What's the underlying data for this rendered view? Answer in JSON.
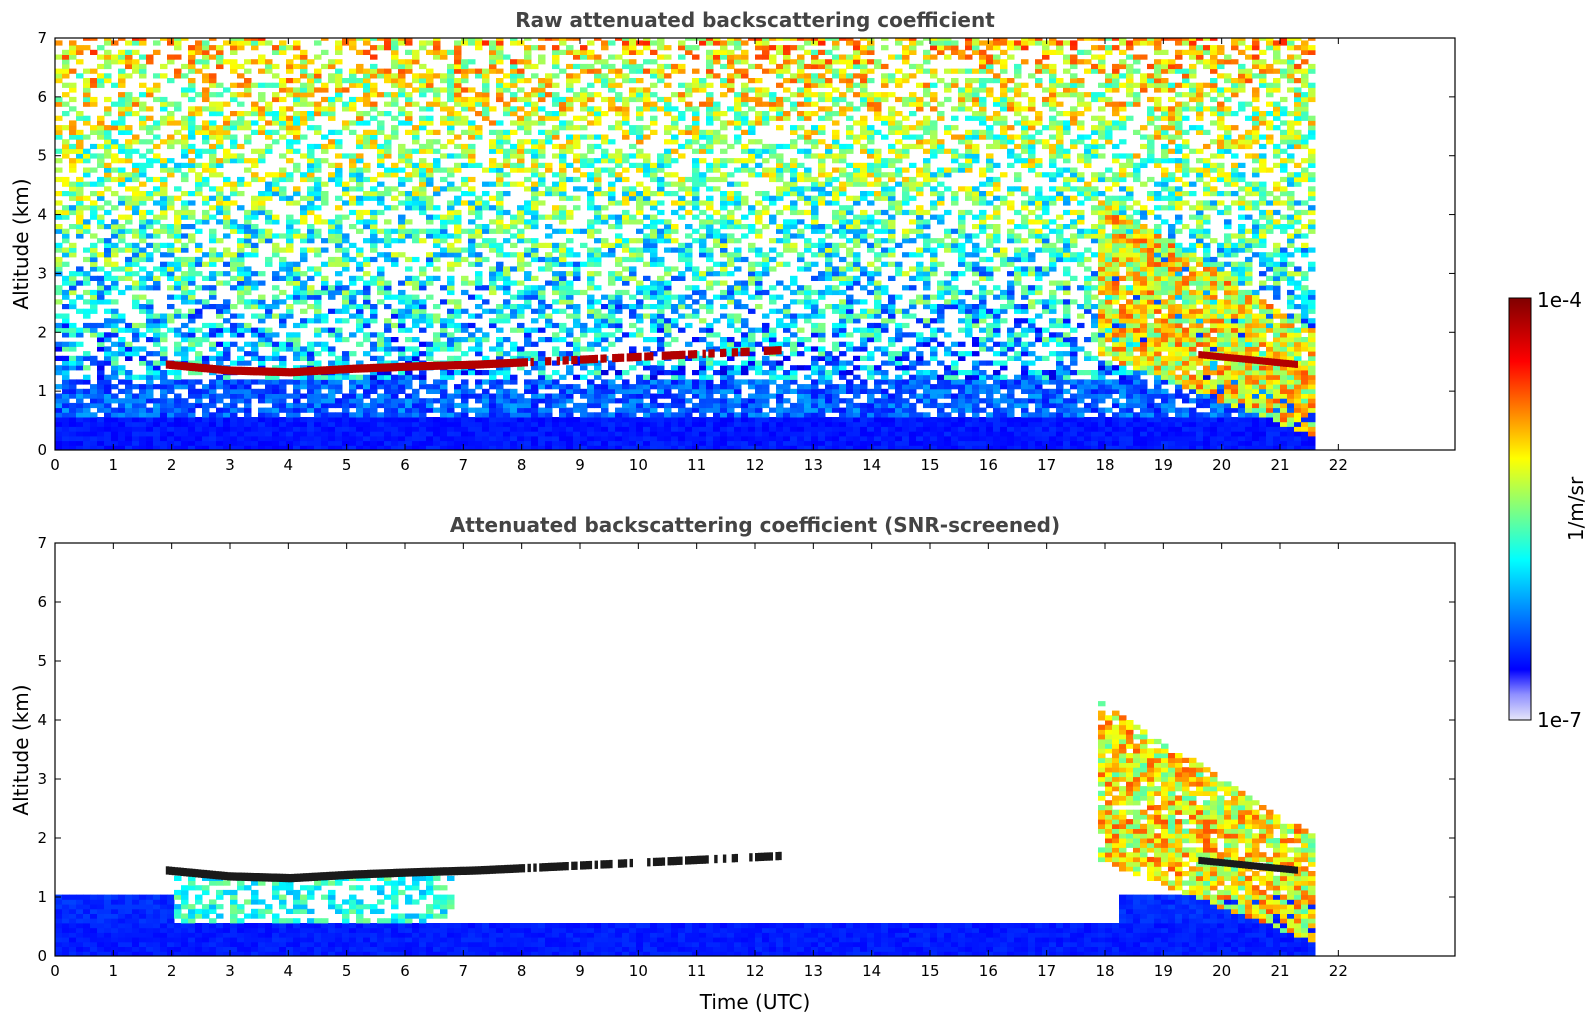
{
  "chart_data": [
    {
      "type": "heatmap",
      "title": "Raw attenuated backscattering coefficient",
      "xlabel": "",
      "ylabel": "Altitude (km)",
      "xlim": [
        0,
        24
      ],
      "ylim": [
        0,
        7
      ],
      "x_ticks": [
        "0",
        "1",
        "2",
        "3",
        "4",
        "5",
        "6",
        "7",
        "8",
        "9",
        "10",
        "11",
        "12",
        "13",
        "14",
        "15",
        "16",
        "17",
        "18",
        "19",
        "20",
        "21",
        "22"
      ],
      "y_ticks": [
        "0",
        "1",
        "2",
        "3",
        "4",
        "5",
        "6",
        "7"
      ],
      "data_end_hour": 21.5,
      "features": {
        "cloud_layer": {
          "start": 1.9,
          "end": 12.5,
          "altitude_km": [
            1.45,
            1.35,
            1.32,
            1.38,
            1.42,
            1.45,
            1.5,
            1.55,
            1.6,
            1.65,
            1.7
          ]
        },
        "evening_layer": {
          "start": 17.8,
          "end": 21.5,
          "top_km": 4.3,
          "bottom_km": 1.1
        }
      }
    },
    {
      "type": "heatmap",
      "title": "Attenuated backscattering coefficient (SNR-screened)",
      "xlabel": "Time (UTC)",
      "ylabel": "Altitude (km)",
      "xlim": [
        0,
        24
      ],
      "ylim": [
        0,
        7
      ],
      "x_ticks": [
        "0",
        "1",
        "2",
        "3",
        "4",
        "5",
        "6",
        "7",
        "8",
        "9",
        "10",
        "11",
        "12",
        "13",
        "14",
        "15",
        "16",
        "17",
        "18",
        "19",
        "20",
        "21",
        "22"
      ],
      "y_ticks": [
        "0",
        "1",
        "2",
        "3",
        "4",
        "5",
        "6",
        "7"
      ],
      "data_end_hour": 21.5
    }
  ],
  "colorbar": {
    "label": "1/m/sr",
    "max_label": "1e-4",
    "min_label": "1e-7",
    "scale": "log",
    "colormap": "jet",
    "colors": [
      "#e6e6fa",
      "#0000ff",
      "#00ffff",
      "#ffff00",
      "#ff0000",
      "#800000"
    ]
  }
}
